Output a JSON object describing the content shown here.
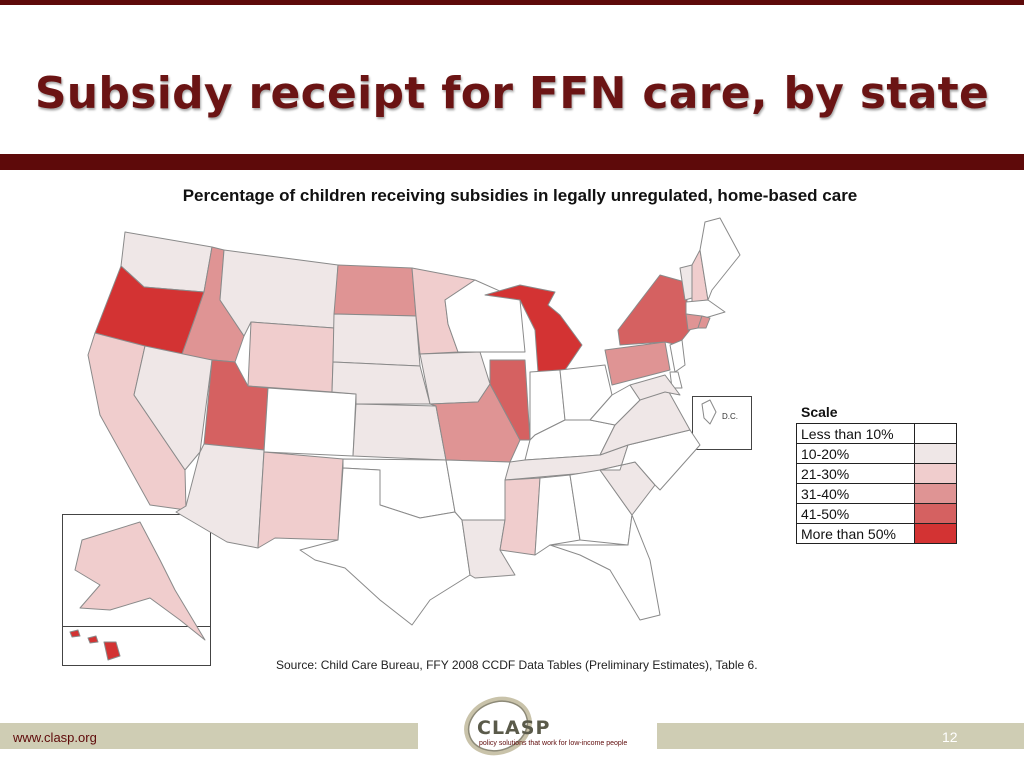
{
  "slide": {
    "title": "Subsidy receipt for FFN care, by state",
    "subtitle": "Percentage of children receiving subsidies in legally unregulated, home-based care",
    "source": "Source: Child Care Bureau, FFY 2008 CCDF Data Tables (Preliminary Estimates), Table 6.",
    "dc_label": "D.C.",
    "footer_url": "www.clasp.org",
    "page_number": "12",
    "logo": {
      "name": "CLASP",
      "tagline": "policy solutions that work for low-income people"
    }
  },
  "scale": {
    "title": "Scale",
    "levels": [
      {
        "label": "Less than 10%",
        "color": "#ffffff"
      },
      {
        "label": "10-20%",
        "color": "#efe7e7"
      },
      {
        "label": "21-30%",
        "color": "#f0cdcd"
      },
      {
        "label": "31-40%",
        "color": "#df9494"
      },
      {
        "label": "41-50%",
        "color": "#d56161"
      },
      {
        "label": "More than 50%",
        "color": "#d33333"
      }
    ]
  },
  "states": {
    "WA": 1,
    "OR": 5,
    "ID": 3,
    "MT": 1,
    "WY": 2,
    "CA": 2,
    "NV": 1,
    "UT": 4,
    "CO": 0,
    "AZ": 1,
    "NM": 2,
    "ND": 3,
    "SD": 1,
    "NE": 1,
    "KS": 1,
    "OK": 0,
    "TX": 0,
    "MN": 2,
    "IA": 1,
    "MO": 3,
    "AR": 0,
    "LA": 1,
    "WI": 0,
    "IL": 4,
    "MI": 5,
    "IN": 0,
    "OH": 0,
    "KY": 0,
    "TN": 1,
    "MS": 2,
    "AL": 0,
    "GA": 0,
    "FL": 0,
    "SC": 1,
    "NC": 0,
    "VA": 1,
    "WV": 0,
    "PA": 3,
    "NY": 4,
    "VT": 1,
    "NH": 2,
    "ME": 0,
    "MA": 0,
    "CT": 3,
    "RI": 3,
    "NJ": 0,
    "DE": 0,
    "MD": 1,
    "AK": 2,
    "HI": 5,
    "DC": 0
  }
}
